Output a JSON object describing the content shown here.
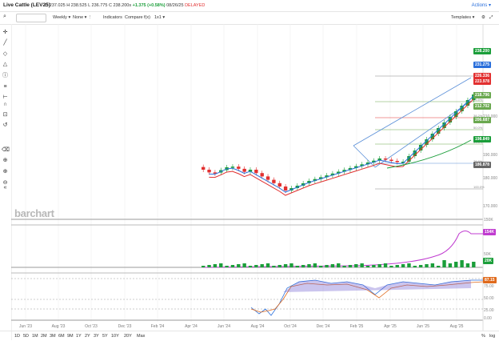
{
  "header": {
    "symbol": "Live Cattle (LEV25)",
    "open": "O 237.025",
    "high": "H 238.525",
    "low": "L 236.775",
    "close": "C 238.200s",
    "change": "+1.375 (+0.58%)",
    "timestamp": "08/26/25",
    "delayed": "DELAYED",
    "actions": "Actions"
  },
  "toolbar": {
    "interval": "Weekly",
    "none": "None",
    "indicators": "Indicators",
    "compare": "Compare",
    "fx": "f(x)",
    "layout": "1x1",
    "templates": "Templates"
  },
  "price_axis": {
    "ticks": [
      "210.000",
      "190.000",
      "180.000",
      "170.000"
    ],
    "labels": [
      {
        "text": "238.200",
        "color": "#1b9e3a"
      },
      {
        "text": "231.275",
        "color": "#2a6fdb"
      },
      {
        "text": "226.336",
        "color": "#e23030"
      },
      {
        "text": "223.978",
        "color": "#e23030"
      },
      {
        "text": "218.796",
        "color": "#6aa84f"
      },
      {
        "text": "212.702",
        "color": "#6aa84f"
      },
      {
        "text": "206.687",
        "color": "#6aa84f"
      },
      {
        "text": "198.849",
        "color": "#1b9e3a"
      },
      {
        "text": "186.878",
        "color": "#666666"
      }
    ],
    "fib_labels": [
      "23.6%",
      "38.2%",
      "50.0%",
      "61.8%",
      "78.6%",
      "100.0%"
    ]
  },
  "volume_axis": {
    "ticks": [
      "150K",
      "100K",
      "50K"
    ],
    "labels": [
      {
        "text": "154K",
        "color": "#c03cd0"
      },
      {
        "text": "20K",
        "color": "#1b9e3a"
      }
    ]
  },
  "osc_axis": {
    "ticks": [
      "75.00",
      "50.00",
      "25.00",
      "0.00"
    ],
    "labels": [
      {
        "text": "87.15",
        "color": "#e06a1c"
      }
    ]
  },
  "x_axis": [
    "Jun '23",
    "Aug '23",
    "Oct '23",
    "Dec '23",
    "Feb '24",
    "Apr '24",
    "Jun '24",
    "Aug '24",
    "Oct '24",
    "Dec '24",
    "Feb '25",
    "Apr '25",
    "Jun '25",
    "Aug '25"
  ],
  "watermark": "barchart",
  "timeframes": [
    "1D",
    "5D",
    "1M",
    "2M",
    "3M",
    "6M",
    "9M",
    "1Y",
    "2Y",
    "3Y",
    "5Y",
    "10Y",
    "20Y",
    "Max"
  ],
  "bottom_right": [
    "%",
    "log"
  ],
  "colors": {
    "up": "#1b9e3a",
    "down": "#e23030",
    "ma_fast": "#2a6fdb",
    "ma_slow": "#e23030",
    "ma_long": "#1b9e3a",
    "oi": "#c03cd0"
  }
}
